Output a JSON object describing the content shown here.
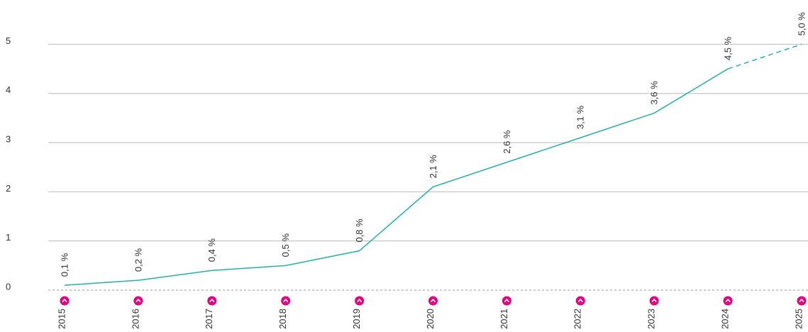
{
  "chart_data": {
    "type": "line",
    "categories": [
      "2015",
      "2016",
      "2017",
      "2018",
      "2019",
      "2020",
      "2021",
      "2022",
      "2023",
      "2024",
      "2025"
    ],
    "series": [
      {
        "color": "#22b3a7",
        "values": [
          0.1,
          0.2,
          0.4,
          0.5,
          0.8,
          2.1,
          2.6,
          3.1,
          3.6,
          4.5,
          5.0
        ],
        "value_labels": [
          "0,1 %",
          "0,2 %",
          "0,4 %",
          "0,5 %",
          "0,8 %",
          "2,1 %",
          "2,6 %",
          "3,1 %",
          "3,6 %",
          "4,5 %",
          "5,0 %"
        ]
      }
    ],
    "dashed_after": "2024",
    "ylim": [
      0,
      5.9
    ],
    "yticks": [
      0,
      1,
      2,
      3,
      4,
      5
    ],
    "grid": true,
    "icon_color": "#e6007e"
  }
}
